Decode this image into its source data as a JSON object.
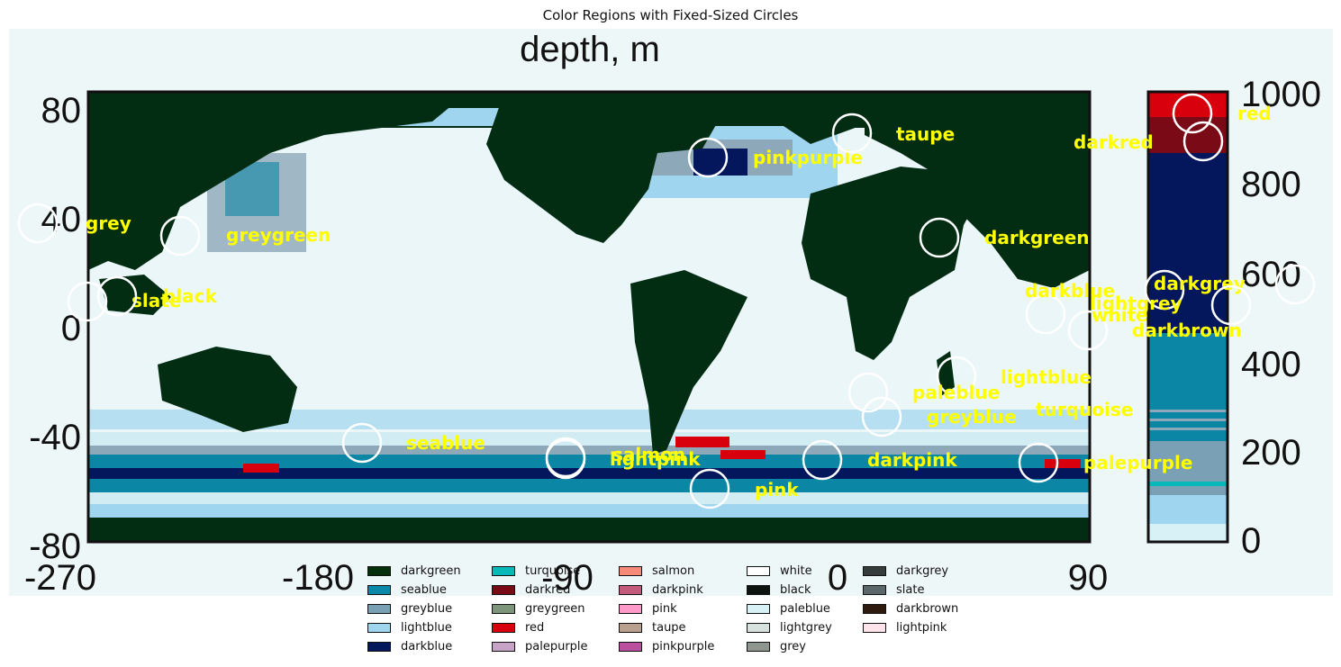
{
  "title": "Color Regions with Fixed-Sized Circles",
  "chart_data": {
    "type": "scatter",
    "background_image": {
      "title": "depth, m",
      "x_ticks": [
        "-270",
        "-180",
        "-90",
        "0",
        "90"
      ],
      "y_ticks": [
        "80",
        "40",
        "0",
        "-40",
        "-80"
      ],
      "colorbar_ticks": [
        "1000",
        "800",
        "600",
        "400",
        "200",
        "0"
      ]
    },
    "annotations": [
      {
        "label": "grey",
        "color": "grey"
      },
      {
        "label": "greygreen",
        "color": "greygreen"
      },
      {
        "label": "slate",
        "color": "slate"
      },
      {
        "label": "black",
        "color": "black"
      },
      {
        "label": "pinkpurple",
        "color": "pinkpurple"
      },
      {
        "label": "taupe",
        "color": "taupe"
      },
      {
        "label": "darkgreen",
        "color": "darkgreen"
      },
      {
        "label": "red",
        "color": "red"
      },
      {
        "label": "darkred",
        "color": "darkred"
      },
      {
        "label": "darkgrey",
        "color": "darkgrey"
      },
      {
        "label": "darkblue",
        "color": "darkblue"
      },
      {
        "label": "lightgrey",
        "color": "lightgrey"
      },
      {
        "label": "white",
        "color": "white"
      },
      {
        "label": "darkbrown",
        "color": "darkbrown"
      },
      {
        "label": "lightblue",
        "color": "lightblue"
      },
      {
        "label": "paleblue",
        "color": "paleblue"
      },
      {
        "label": "greyblue",
        "color": "greyblue"
      },
      {
        "label": "turquoise",
        "color": "turquoise"
      },
      {
        "label": "seablue",
        "color": "seablue"
      },
      {
        "label": "salmon",
        "color": "salmon"
      },
      {
        "label": "lightpink",
        "color": "lightpink"
      },
      {
        "label": "darkpink",
        "color": "darkpink"
      },
      {
        "label": "palepurple",
        "color": "palepurple"
      },
      {
        "label": "pink",
        "color": "pink"
      }
    ],
    "legend": [
      {
        "label": "darkgreen",
        "color": "#04310b"
      },
      {
        "label": "seablue",
        "color": "#0a88a8"
      },
      {
        "label": "greyblue",
        "color": "#79a0b4"
      },
      {
        "label": "lightblue",
        "color": "#9fd5ee"
      },
      {
        "label": "darkblue",
        "color": "#04165c"
      },
      {
        "label": "turquoise",
        "color": "#07b9b9"
      },
      {
        "label": "darkred",
        "color": "#7a0a16"
      },
      {
        "label": "greygreen",
        "color": "#7d967b"
      },
      {
        "label": "red",
        "color": "#d8000c"
      },
      {
        "label": "palepurple",
        "color": "#c7a3c8"
      },
      {
        "label": "salmon",
        "color": "#f88a7a"
      },
      {
        "label": "darkpink",
        "color": "#c25b7c"
      },
      {
        "label": "pink",
        "color": "#fe9ac9"
      },
      {
        "label": "taupe",
        "color": "#b9a08f"
      },
      {
        "label": "pinkpurple",
        "color": "#bb4fa0"
      },
      {
        "label": "white",
        "color": "#ffffff"
      },
      {
        "label": "black",
        "color": "#0c1410"
      },
      {
        "label": "paleblue",
        "color": "#d8f1f7"
      },
      {
        "label": "lightgrey",
        "color": "#d7e2de"
      },
      {
        "label": "grey",
        "color": "#8f958f"
      },
      {
        "label": "darkgrey",
        "color": "#363b3b"
      },
      {
        "label": "slate",
        "color": "#5b676b"
      },
      {
        "label": "darkbrown",
        "color": "#2f1a0f"
      },
      {
        "label": "lightpink",
        "color": "#ffe3ea"
      }
    ],
    "colors": {
      "ocean_light": "#eaf6f8",
      "land": "#022d13",
      "annotation_text": "#ffff00",
      "circle": "#ffffff"
    }
  }
}
